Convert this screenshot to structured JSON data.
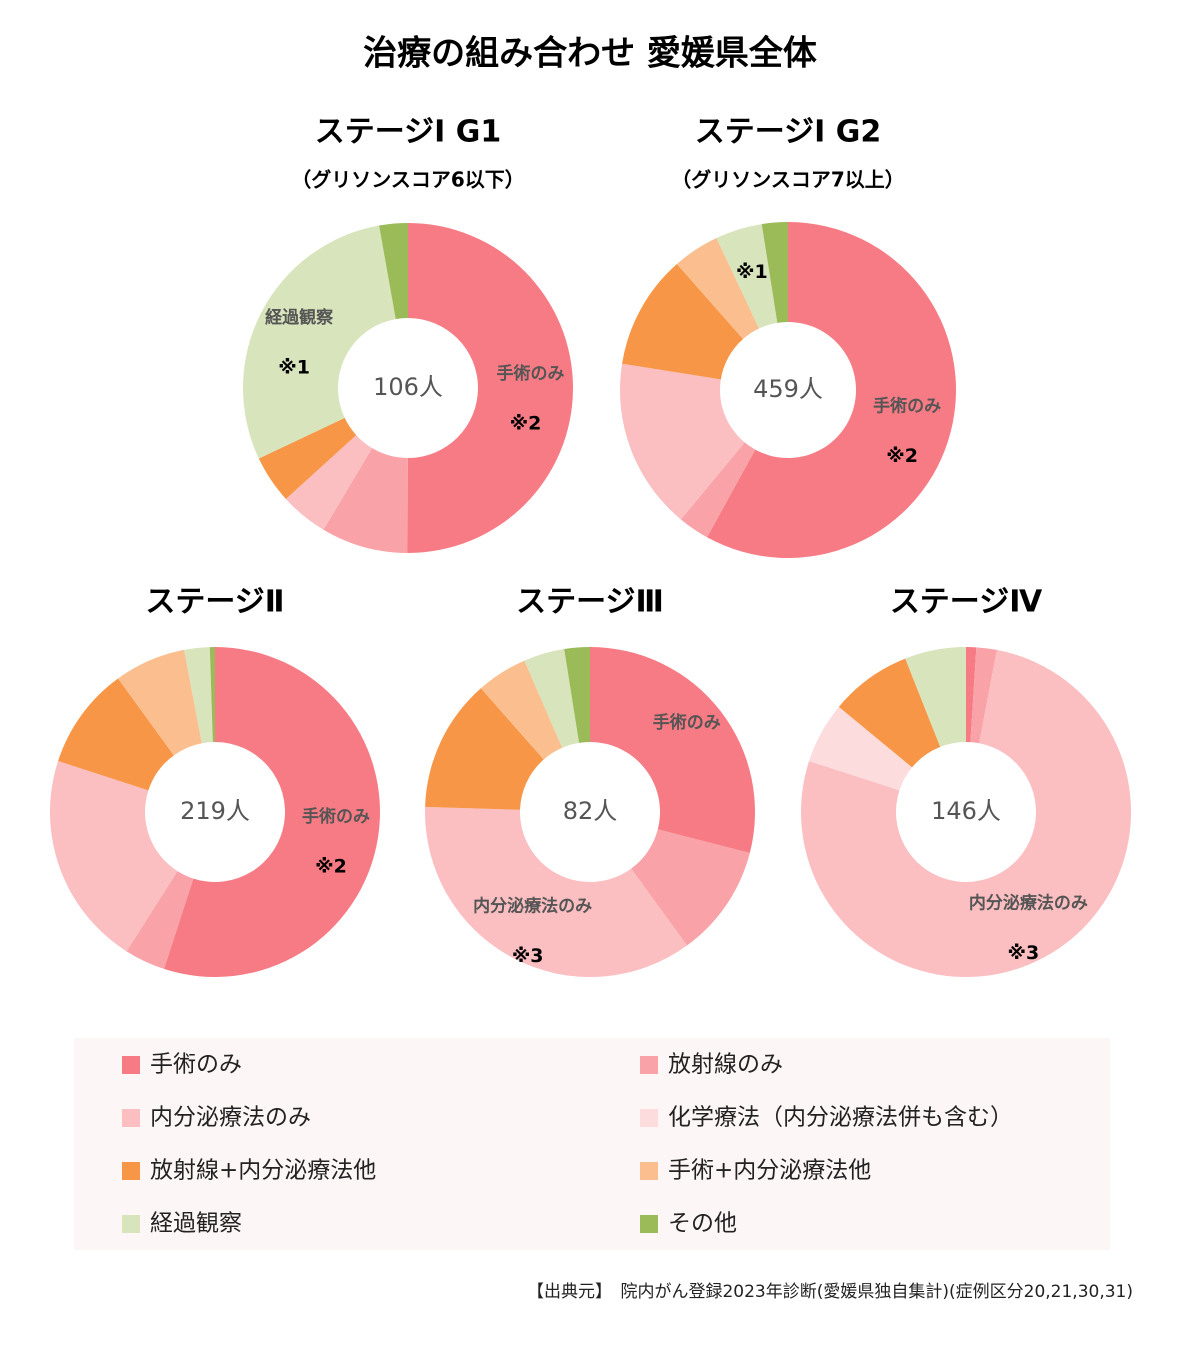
{
  "title": "治療の組み合わせ 愛媛県全体",
  "legend": {
    "labels": [
      "手術のみ",
      "放射線のみ",
      "内分泌療法のみ",
      "化学療法（内分泌療法併も含む）",
      "放射線+内分泌療法他",
      "手術+内分泌療法他",
      "経過観察",
      "その他"
    ],
    "colors": [
      "#f77b84",
      "#f9a2a7",
      "#fbbec1",
      "#fcdcdd",
      "#f79646",
      "#fbbf8f",
      "#d8e4bc",
      "#9bbb59"
    ]
  },
  "chart_data": [
    {
      "type": "pie",
      "title": "ステージⅠ G1",
      "subtitle": "（グリソンスコア6以下）",
      "center_label": "106人",
      "values": [
        50,
        8.5,
        4.7,
        0,
        4.7,
        0,
        29.2,
        2.8
      ],
      "segment_labels": [
        "手術のみ",
        null,
        null,
        null,
        null,
        null,
        "経過観察",
        null
      ],
      "segment_notes": [
        "※2",
        null,
        null,
        null,
        null,
        null,
        "※1",
        null
      ]
    },
    {
      "type": "pie",
      "title": "ステージⅠ G2",
      "subtitle": "（グリソンスコア7以上）",
      "center_label": "459人",
      "values": [
        58,
        3,
        16.5,
        0,
        11,
        4.5,
        4.5,
        2.5
      ],
      "segment_labels": [
        "手術のみ",
        null,
        null,
        null,
        null,
        null,
        null,
        null
      ],
      "segment_notes": [
        "※2",
        null,
        null,
        null,
        null,
        null,
        "※1",
        null
      ]
    },
    {
      "type": "pie",
      "title": "ステージⅡ",
      "center_label": "219人",
      "values": [
        55,
        4,
        21,
        0,
        10,
        7,
        2.5,
        0.5
      ],
      "segment_labels": [
        "手術のみ",
        null,
        null,
        null,
        null,
        null,
        null,
        null
      ],
      "segment_notes": [
        "※2",
        null,
        null,
        null,
        null,
        null,
        null,
        null
      ]
    },
    {
      "type": "pie",
      "title": "ステージⅢ",
      "center_label": "82人",
      "values": [
        29,
        11,
        35.5,
        0,
        13,
        5,
        4,
        2.5
      ],
      "segment_labels": [
        "手術のみ",
        null,
        "内分泌療法のみ",
        null,
        null,
        null,
        null,
        null
      ],
      "segment_notes": [
        null,
        null,
        "※3",
        null,
        null,
        null,
        null,
        null
      ]
    },
    {
      "type": "pie",
      "title": "ステージⅣ",
      "center_label": "146人",
      "values": [
        1,
        2,
        77,
        6,
        8,
        0,
        6,
        0
      ],
      "segment_labels": [
        null,
        null,
        "内分泌療法のみ",
        null,
        null,
        null,
        null,
        null
      ],
      "segment_notes": [
        null,
        null,
        "※3",
        null,
        null,
        null,
        null,
        null
      ]
    }
  ],
  "source": "【出典元】　院内がん登録2023年診断(愛媛県独自集計)(症例区分20,21,30,31)"
}
